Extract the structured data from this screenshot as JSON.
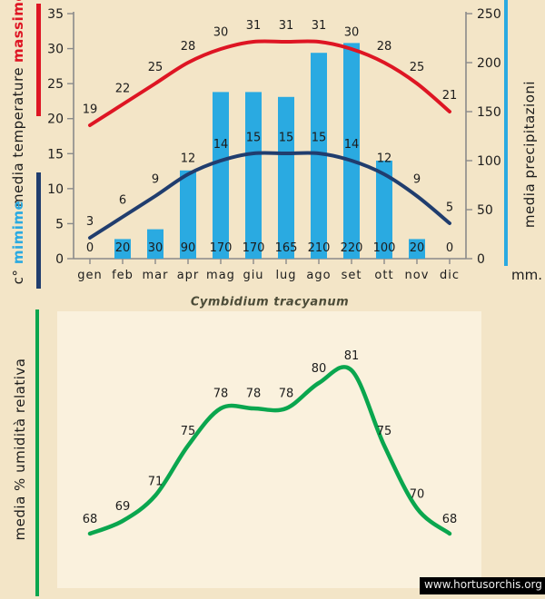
{
  "colors": {
    "background": "#f3e5c7",
    "panel": "#faf1dd",
    "axis": "#8a8a8a",
    "text": "#1c1c1c",
    "max_temp_red": "#de1523",
    "min_temp_navy": "#203d6e",
    "precipitation_cyan": "#2aaae1",
    "humidity_green": "#0aa64e",
    "title": "#4c4c38",
    "watermark_bg": "#000000",
    "watermark_text": "#eeeeee"
  },
  "sidebar_left": {
    "massime_label": "massime",
    "temperature_label": "media temperature",
    "minime_label": "mimime",
    "unit_label": "c°"
  },
  "sidebar_right": {
    "precipitation_label": "media precipitazioni",
    "unit_label": "mm."
  },
  "sidebar_bottom_left": {
    "humidity_label": "media % umidità relativa"
  },
  "title": "Cymbidium tracyanum",
  "watermark": "www.hortusorchis.org",
  "chart_data": [
    {
      "type": "bar",
      "title": "",
      "categories": [
        "gen",
        "feb",
        "mar",
        "apr",
        "mag",
        "giu",
        "lug",
        "ago",
        "set",
        "ott",
        "nov",
        "dic"
      ],
      "series": [
        {
          "name": "massime",
          "type": "line",
          "axis": "left",
          "color": "#de1523",
          "values": [
            19,
            22,
            25,
            28,
            30,
            31,
            31,
            31,
            30,
            28,
            25,
            21
          ]
        },
        {
          "name": "mimime",
          "type": "line",
          "axis": "left",
          "color": "#203d6e",
          "values": [
            3,
            6,
            9,
            12,
            14,
            15,
            15,
            15,
            14,
            12,
            9,
            5
          ]
        },
        {
          "name": "media precipitazioni",
          "type": "bar",
          "axis": "right",
          "color": "#2aaae1",
          "values": [
            0,
            20,
            30,
            90,
            170,
            170,
            165,
            210,
            220,
            100,
            20,
            0
          ]
        }
      ],
      "axis_left": {
        "label": "c° media temperature",
        "ticks": [
          35,
          30,
          25,
          20,
          15,
          10,
          5,
          0
        ],
        "range": [
          0,
          35
        ]
      },
      "axis_right": {
        "label": "media precipitazioni",
        "unit": "mm.",
        "ticks": [
          250,
          200,
          150,
          100,
          50,
          0
        ],
        "range": [
          0,
          250
        ]
      },
      "grid": false,
      "legend_position": "rotated-left-axis-labels"
    },
    {
      "type": "line",
      "title": "Cymbidium tracyanum",
      "categories": [
        "gen",
        "feb",
        "mar",
        "apr",
        "mag",
        "giu",
        "lug",
        "ago",
        "set",
        "ott",
        "nov",
        "dic"
      ],
      "series": [
        {
          "name": "media % umidità relativa",
          "type": "line",
          "color": "#0aa64e",
          "values": [
            68,
            69,
            71,
            75,
            78,
            78,
            78,
            80,
            81,
            75,
            70,
            68
          ]
        }
      ],
      "ylim": [
        66,
        84
      ],
      "grid": false,
      "legend_position": "rotated-left-axis-label"
    }
  ]
}
